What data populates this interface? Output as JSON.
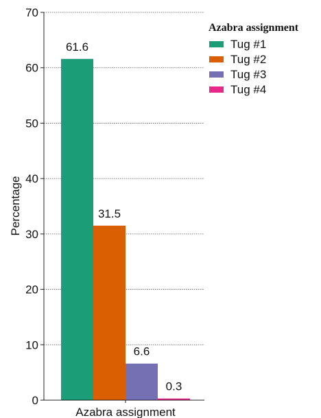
{
  "chart_data": {
    "type": "bar",
    "categories": [
      "Azabra assignment"
    ],
    "series": [
      {
        "name": "Tug #1",
        "values": [
          61.6
        ],
        "color": "#1b9e77"
      },
      {
        "name": "Tug #2",
        "values": [
          31.5
        ],
        "color": "#d95f02"
      },
      {
        "name": "Tug #3",
        "values": [
          6.6
        ],
        "color": "#7570b3"
      },
      {
        "name": "Tug #4",
        "values": [
          0.3
        ],
        "color": "#e7298a"
      }
    ],
    "data_labels": [
      "61.6",
      "31.5",
      "6.6",
      "0.3"
    ],
    "xlabel": "Azabra assignment",
    "ylabel": "Percentage",
    "ylim": [
      0,
      70
    ],
    "yticks": [
      0,
      10,
      20,
      30,
      40,
      50,
      60,
      70
    ],
    "ytick_labels": [
      "0",
      "10",
      "20",
      "30",
      "40",
      "50",
      "60",
      "70"
    ],
    "legend": {
      "title": "Azabra assignment",
      "placement": "top-right"
    },
    "grid": true
  }
}
